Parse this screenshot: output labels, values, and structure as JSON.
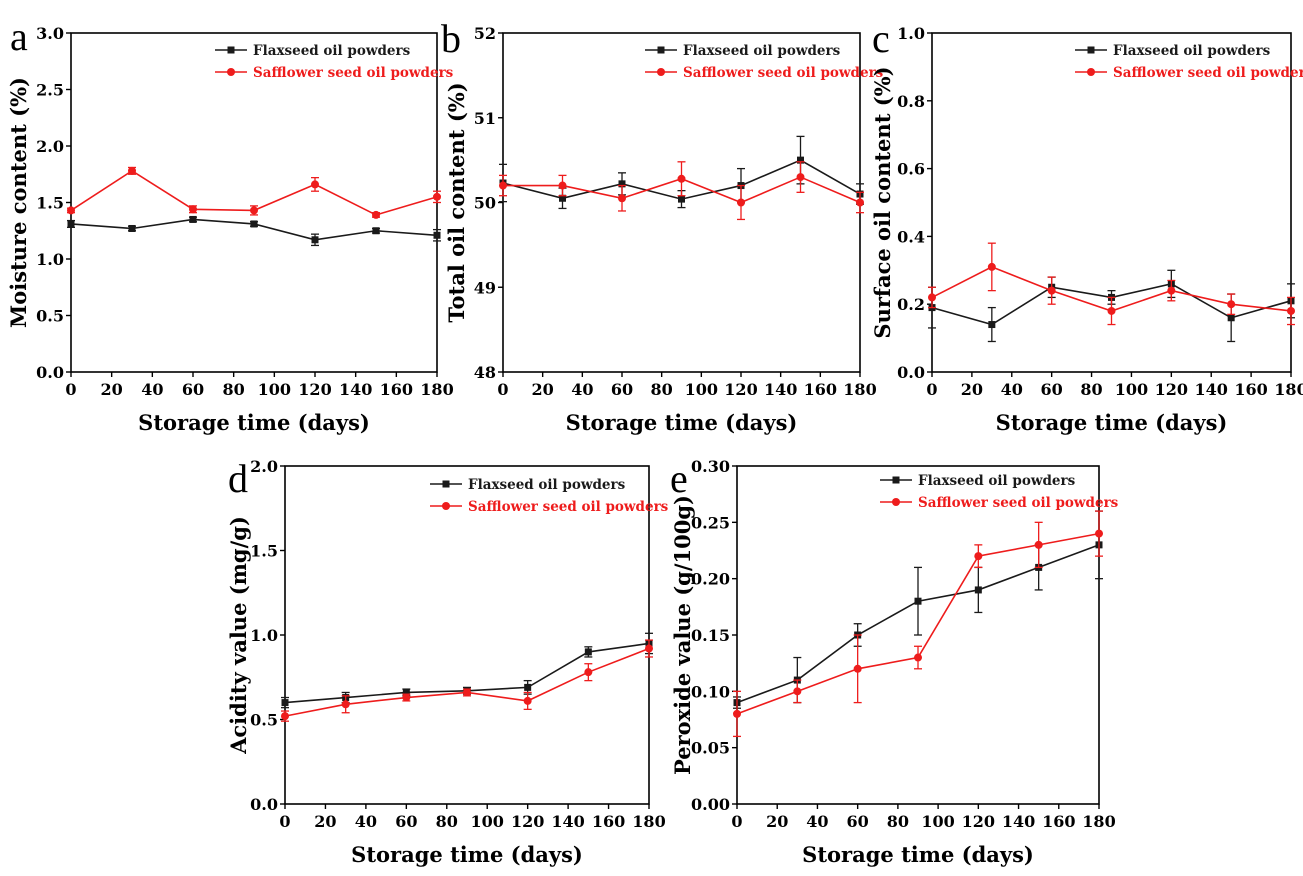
{
  "figure": {
    "series_colors": [
      "#1a1a1a",
      "#ee1c1c"
    ],
    "marker_shapes": [
      "square",
      "circle"
    ]
  },
  "chart_data": [
    {
      "panel": "a",
      "type": "line",
      "xlabel": "Storage time (days)",
      "ylabel": "Moisture content (%)",
      "x": [
        0,
        30,
        60,
        90,
        120,
        150,
        180
      ],
      "xlim": [
        0,
        180
      ],
      "ylim": [
        0,
        3.0
      ],
      "xticks": [
        "0",
        "20",
        "40",
        "60",
        "80",
        "100",
        "120",
        "140",
        "160",
        "180"
      ],
      "yticks": [
        "0.0",
        "0.5",
        "1.0",
        "1.5",
        "2.0",
        "2.5",
        "3.0"
      ],
      "series": [
        {
          "name": "Flaxseed oil powders",
          "values": [
            1.31,
            1.27,
            1.35,
            1.31,
            1.17,
            1.25,
            1.21
          ],
          "errors": [
            0.03,
            0.02,
            0.02,
            0.02,
            0.05,
            0.02,
            0.05
          ]
        },
        {
          "name": "Safflower seed oil powders",
          "values": [
            1.43,
            1.78,
            1.44,
            1.43,
            1.66,
            1.39,
            1.55
          ],
          "errors": [
            0.02,
            0.03,
            0.03,
            0.04,
            0.06,
            0.02,
            0.05
          ]
        }
      ]
    },
    {
      "panel": "b",
      "type": "line",
      "xlabel": "Storage time (days)",
      "ylabel": "Total oil content (%)",
      "x": [
        0,
        30,
        60,
        90,
        120,
        150,
        180
      ],
      "xlim": [
        0,
        180
      ],
      "ylim": [
        48,
        52
      ],
      "xticks": [
        "0",
        "20",
        "40",
        "60",
        "80",
        "100",
        "120",
        "140",
        "160",
        "180"
      ],
      "yticks": [
        "48",
        "49",
        "50",
        "51",
        "52"
      ],
      "series": [
        {
          "name": "Flaxseed oil powders",
          "values": [
            50.23,
            50.05,
            50.22,
            50.04,
            50.2,
            50.5,
            50.1
          ],
          "errors": [
            0.22,
            0.12,
            0.13,
            0.1,
            0.2,
            0.28,
            0.12
          ]
        },
        {
          "name": "Safflower seed oil powders",
          "values": [
            50.2,
            50.2,
            50.05,
            50.28,
            50.0,
            50.3,
            50.0
          ],
          "errors": [
            0.12,
            0.12,
            0.15,
            0.2,
            0.2,
            0.18,
            0.12
          ]
        }
      ]
    },
    {
      "panel": "c",
      "type": "line",
      "xlabel": "Storage time (days)",
      "ylabel": "Surface oil content (%)",
      "x": [
        0,
        30,
        60,
        90,
        120,
        150,
        180
      ],
      "xlim": [
        0,
        180
      ],
      "ylim": [
        0,
        1.0
      ],
      "xticks": [
        "0",
        "20",
        "40",
        "60",
        "80",
        "100",
        "120",
        "140",
        "160",
        "180"
      ],
      "yticks": [
        "0.0",
        "0.2",
        "0.4",
        "0.6",
        "0.8",
        "1.0"
      ],
      "series": [
        {
          "name": "Flaxseed oil powders",
          "values": [
            0.19,
            0.14,
            0.25,
            0.22,
            0.26,
            0.16,
            0.21
          ],
          "errors": [
            0.06,
            0.05,
            0.03,
            0.02,
            0.04,
            0.07,
            0.05
          ]
        },
        {
          "name": "Safflower seed oil powders",
          "values": [
            0.22,
            0.31,
            0.24,
            0.18,
            0.24,
            0.2,
            0.18
          ],
          "errors": [
            0.03,
            0.07,
            0.04,
            0.04,
            0.03,
            0.03,
            0.04
          ]
        }
      ]
    },
    {
      "panel": "d",
      "type": "line",
      "xlabel": "Storage time (days)",
      "ylabel": "Acidity value (mg/g)",
      "x": [
        0,
        30,
        60,
        90,
        120,
        150,
        180
      ],
      "xlim": [
        0,
        180
      ],
      "ylim": [
        0,
        2.0
      ],
      "xticks": [
        "0",
        "20",
        "40",
        "60",
        "80",
        "100",
        "120",
        "140",
        "160",
        "180"
      ],
      "yticks": [
        "0.0",
        "0.5",
        "1.0",
        "1.5",
        "2.0"
      ],
      "series": [
        {
          "name": "Flaxseed oil powders",
          "values": [
            0.6,
            0.63,
            0.66,
            0.67,
            0.69,
            0.9,
            0.95
          ],
          "errors": [
            0.03,
            0.03,
            0.02,
            0.02,
            0.04,
            0.03,
            0.06
          ]
        },
        {
          "name": "Safflower seed oil powders",
          "values": [
            0.52,
            0.59,
            0.63,
            0.66,
            0.61,
            0.78,
            0.92
          ],
          "errors": [
            0.03,
            0.05,
            0.02,
            0.02,
            0.05,
            0.05,
            0.05
          ]
        }
      ]
    },
    {
      "panel": "e",
      "type": "line",
      "xlabel": "Storage time (days)",
      "ylabel": "Peroxide value (g/100g)",
      "x": [
        0,
        30,
        60,
        90,
        120,
        150,
        180
      ],
      "xlim": [
        0,
        180
      ],
      "ylim": [
        0,
        0.3
      ],
      "xticks": [
        "0",
        "20",
        "40",
        "60",
        "80",
        "100",
        "120",
        "140",
        "160",
        "180"
      ],
      "yticks": [
        "0.00",
        "0.05",
        "0.10",
        "0.15",
        "0.20",
        "0.25",
        "0.30"
      ],
      "series": [
        {
          "name": "Flaxseed oil powders",
          "values": [
            0.09,
            0.11,
            0.15,
            0.18,
            0.19,
            0.21,
            0.23
          ],
          "errors": [
            0.005,
            0.02,
            0.01,
            0.03,
            0.02,
            0.02,
            0.03
          ]
        },
        {
          "name": "Safflower seed oil powders",
          "values": [
            0.08,
            0.1,
            0.12,
            0.13,
            0.22,
            0.23,
            0.24
          ],
          "errors": [
            0.02,
            0.01,
            0.03,
            0.01,
            0.01,
            0.02,
            0.02
          ]
        }
      ]
    }
  ]
}
